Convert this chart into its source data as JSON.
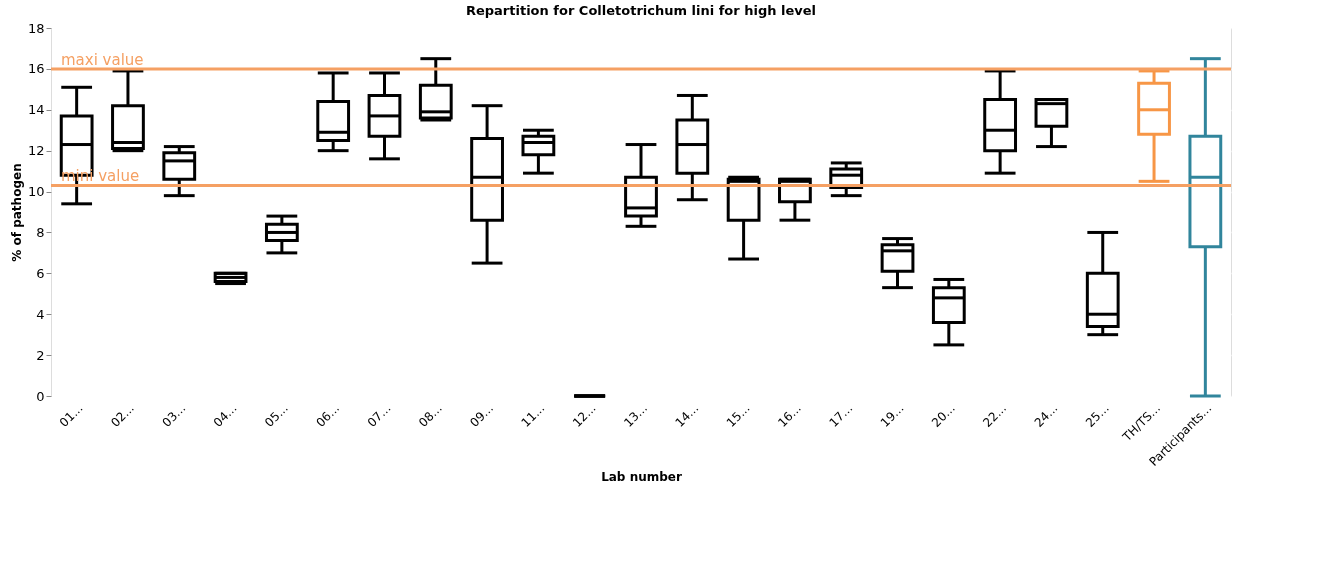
{
  "chart_data": {
    "type": "box",
    "title": "Repartition for Colletotrichum lini for high level",
    "xlabel": "Lab number",
    "ylabel": "% of pathogen",
    "categories": [
      "01...",
      "02...",
      "03...",
      "04...",
      "05...",
      "06...",
      "07...",
      "08...",
      "09...",
      "11...",
      "12...",
      "13...",
      "14...",
      "15...",
      "16...",
      "17...",
      "19...",
      "20...",
      "22...",
      "24...",
      "25...",
      "TH/TS...",
      "Participants..."
    ],
    "boxes": [
      {
        "low": 9.4,
        "q1": 10.8,
        "median": 12.3,
        "q3": 13.7,
        "high": 15.1
      },
      {
        "low": 12.0,
        "q1": 12.1,
        "median": 12.4,
        "q3": 14.2,
        "high": 15.9
      },
      {
        "low": 9.8,
        "q1": 10.6,
        "median": 11.5,
        "q3": 11.9,
        "high": 12.2
      },
      {
        "low": 5.5,
        "q1": 5.6,
        "median": 5.8,
        "q3": 6.0,
        "high": 6.0
      },
      {
        "low": 7.0,
        "q1": 7.6,
        "median": 8.0,
        "q3": 8.4,
        "high": 8.8
      },
      {
        "low": 12.0,
        "q1": 12.5,
        "median": 12.9,
        "q3": 14.4,
        "high": 15.8
      },
      {
        "low": 11.6,
        "q1": 12.7,
        "median": 13.7,
        "q3": 14.7,
        "high": 15.8
      },
      {
        "low": 13.5,
        "q1": 13.6,
        "median": 13.9,
        "q3": 15.2,
        "high": 16.5
      },
      {
        "low": 6.5,
        "q1": 8.6,
        "median": 10.7,
        "q3": 12.6,
        "high": 14.2
      },
      {
        "low": 10.9,
        "q1": 11.8,
        "median": 12.4,
        "q3": 12.7,
        "high": 13.0
      },
      {
        "low": 0,
        "q1": 0,
        "median": 0,
        "q3": 0,
        "high": 0
      },
      {
        "low": 8.3,
        "q1": 8.8,
        "median": 9.2,
        "q3": 10.7,
        "high": 12.3
      },
      {
        "low": 9.6,
        "q1": 10.9,
        "median": 12.3,
        "q3": 13.5,
        "high": 14.7
      },
      {
        "low": 6.7,
        "q1": 8.6,
        "median": 10.5,
        "q3": 10.6,
        "high": 10.7
      },
      {
        "low": 8.6,
        "q1": 9.5,
        "median": 10.5,
        "q3": 10.6,
        "high": 10.6
      },
      {
        "low": 9.8,
        "q1": 10.2,
        "median": 10.8,
        "q3": 11.1,
        "high": 11.4
      },
      {
        "low": 5.3,
        "q1": 6.1,
        "median": 7.1,
        "q3": 7.4,
        "high": 7.7
      },
      {
        "low": 2.5,
        "q1": 3.6,
        "median": 4.8,
        "q3": 5.3,
        "high": 5.7
      },
      {
        "low": 10.9,
        "q1": 12.0,
        "median": 13.0,
        "q3": 14.5,
        "high": 15.9
      },
      {
        "low": 12.2,
        "q1": 13.2,
        "median": 14.3,
        "q3": 14.5,
        "high": 14.5
      },
      {
        "low": 3.0,
        "q1": 3.4,
        "median": 4.0,
        "q3": 6.0,
        "high": 8.0
      },
      {
        "low": 10.5,
        "q1": 12.8,
        "median": 14.0,
        "q3": 15.3,
        "high": 15.9
      },
      {
        "low": 0,
        "q1": 7.3,
        "median": 10.7,
        "q3": 12.7,
        "high": 16.5
      }
    ],
    "colors": [
      "#000000",
      "#000000",
      "#000000",
      "#000000",
      "#000000",
      "#000000",
      "#000000",
      "#000000",
      "#000000",
      "#000000",
      "#000000",
      "#000000",
      "#000000",
      "#000000",
      "#000000",
      "#000000",
      "#000000",
      "#000000",
      "#000000",
      "#000000",
      "#000000",
      "#f79646",
      "#31859c"
    ],
    "ref_lines": [
      {
        "axis": "y",
        "value": 16.0,
        "label": "maxi value",
        "color": "#f5a063"
      },
      {
        "axis": "y",
        "value": 10.3,
        "label": "mini value",
        "color": "#f5a063"
      }
    ],
    "ylim": [
      0,
      18
    ],
    "yticks": [
      0,
      2,
      4,
      6,
      8,
      10,
      12,
      14,
      16,
      18
    ],
    "grid": true
  }
}
